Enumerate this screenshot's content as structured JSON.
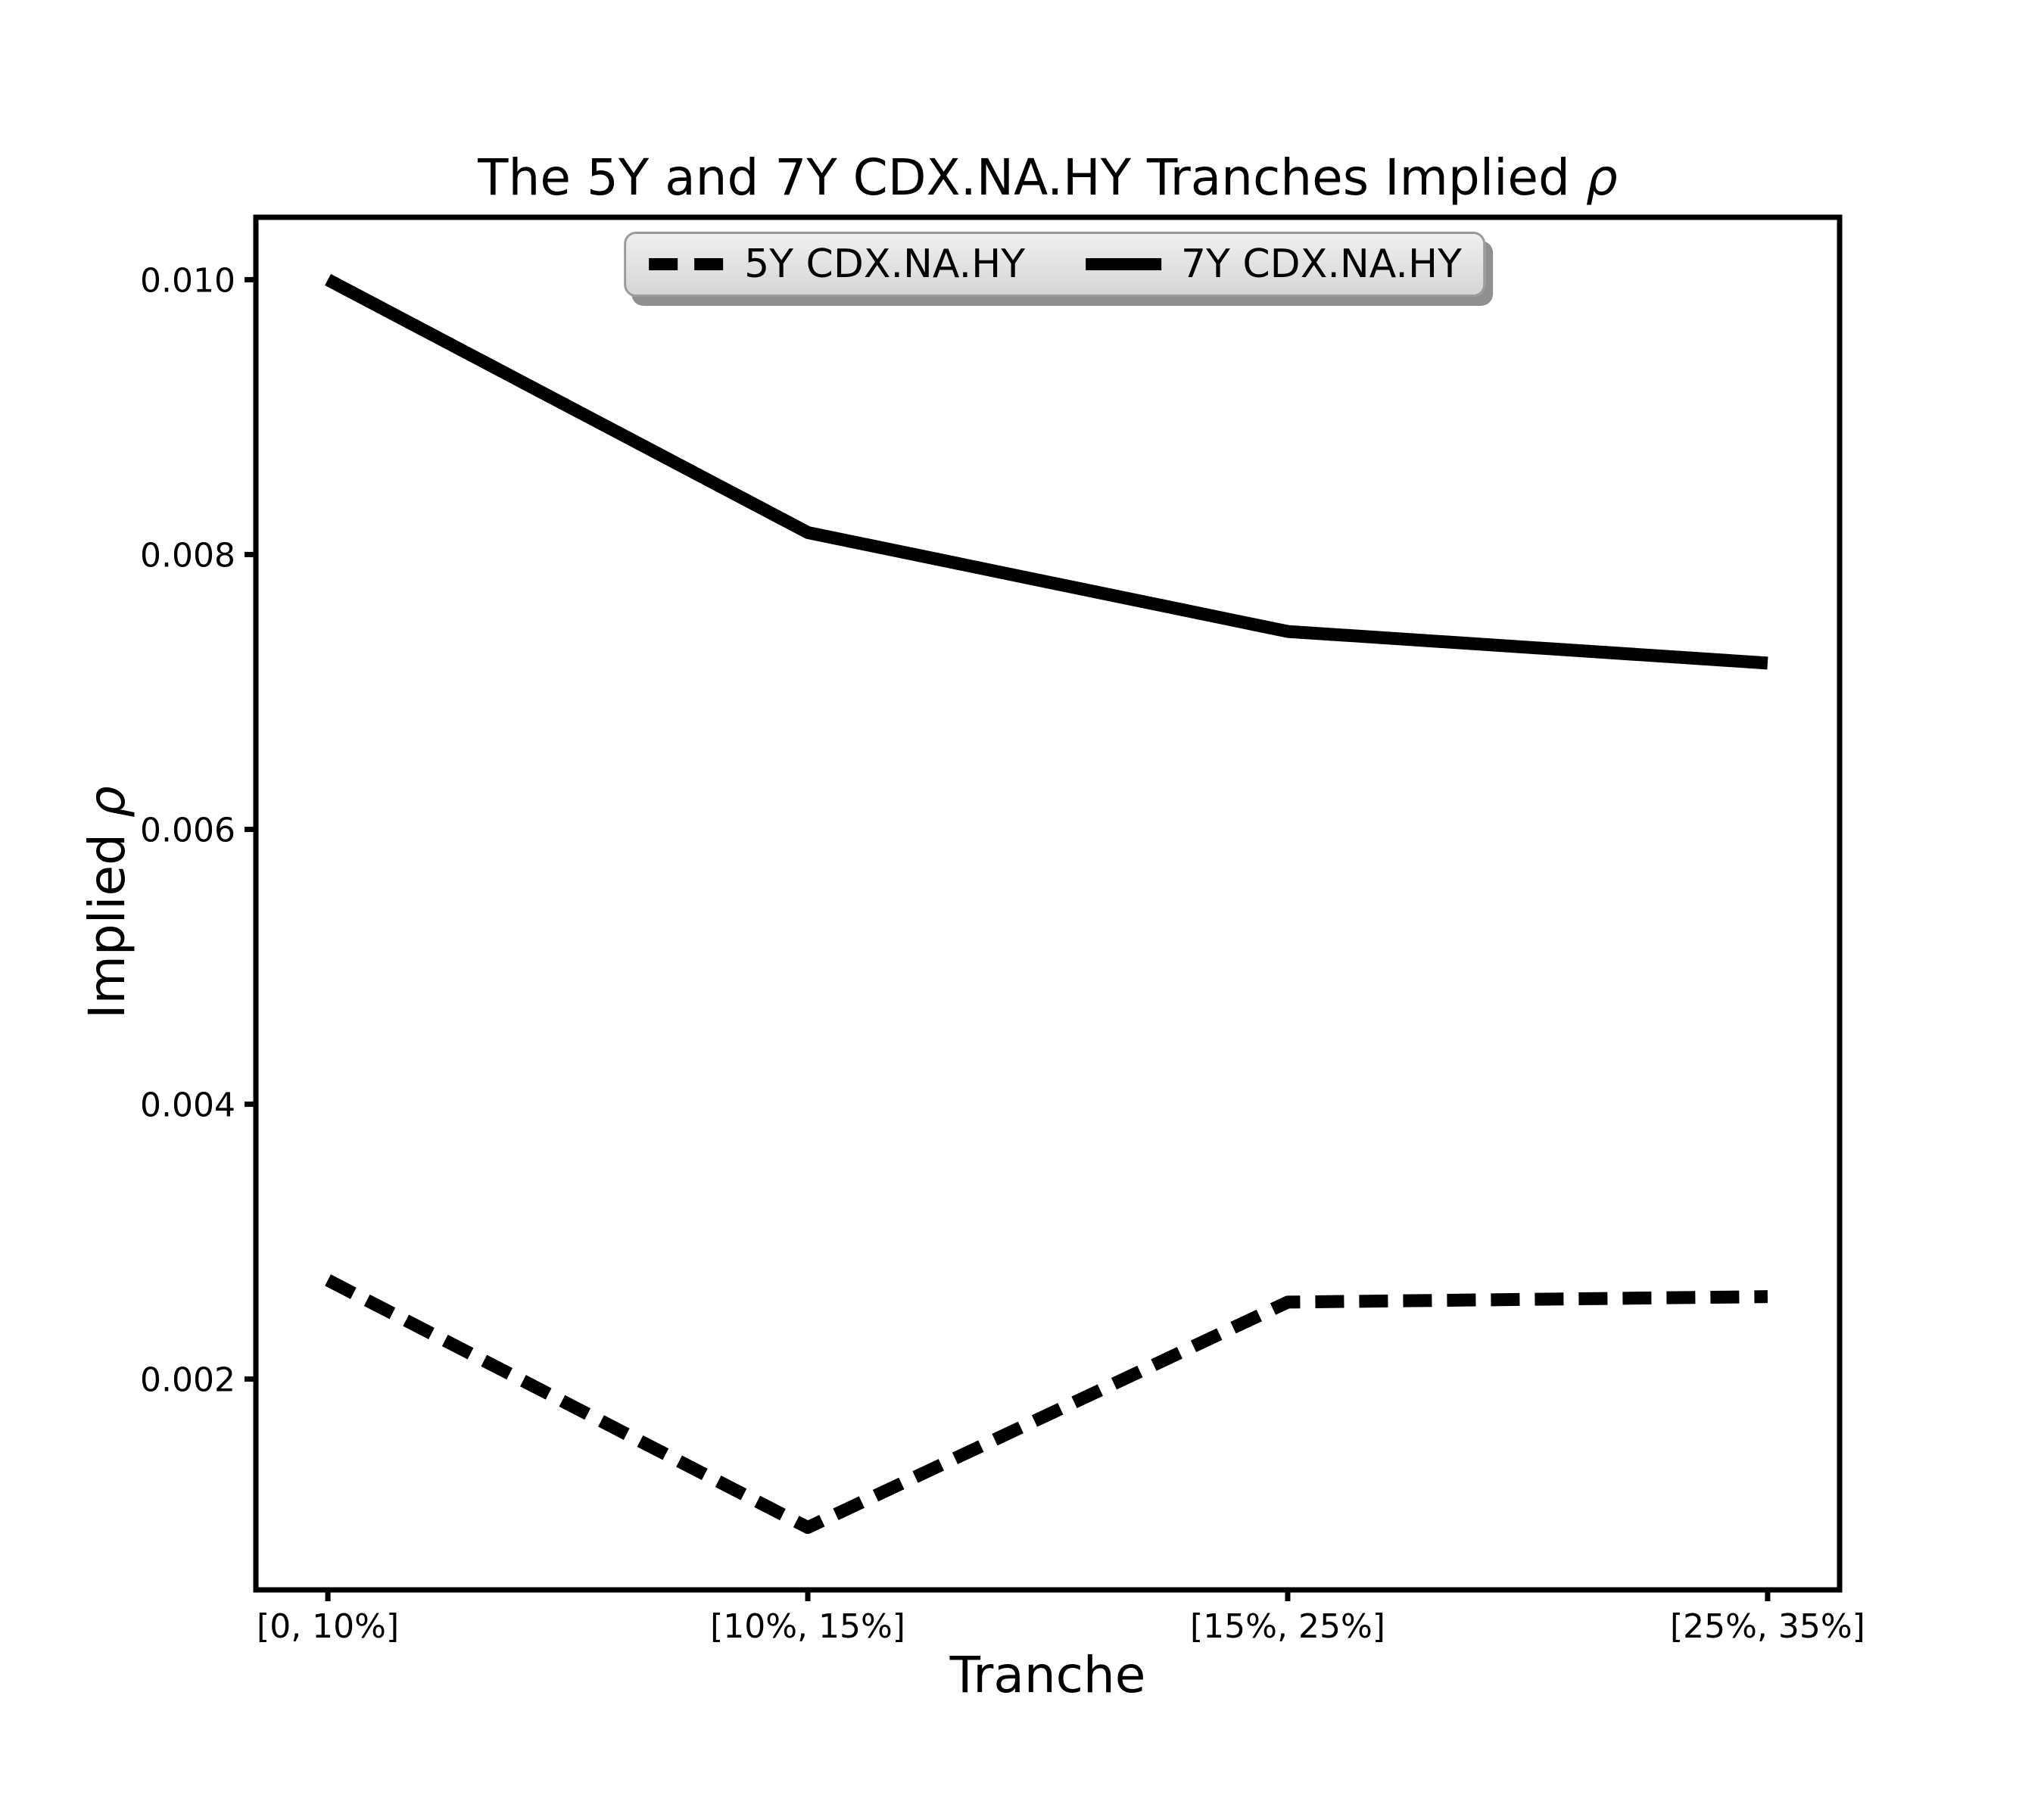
{
  "figure": {
    "background_color": "#ffffff",
    "line_color": "#000000",
    "legend_face_color": "#dcdcdc",
    "legend_edge_color": "#9b9b9b",
    "legend_shadow_color": "#8f8f8f"
  },
  "chart_data": {
    "type": "line",
    "title": "The 5Y and 7Y CDX.NA.HY Tranches Implied ρ",
    "xlabel": "Tranche",
    "ylabel": "Implied ρ",
    "categories": [
      "[0, 10%]",
      "[10%, 15%]",
      "[15%, 25%]",
      "[25%, 35%]"
    ],
    "series": [
      {
        "name": "5Y CDX.NA.HY",
        "line_style": "dashed",
        "color": "#000000",
        "values": [
          0.00272,
          0.00092,
          0.00256,
          0.0026
        ]
      },
      {
        "name": "7Y CDX.NA.HY",
        "line_style": "solid",
        "color": "#000000",
        "values": [
          0.01,
          0.00816,
          0.00744,
          0.00721
        ]
      }
    ],
    "y_ticks": [
      0.002,
      0.004,
      0.006,
      0.008,
      0.01
    ],
    "y_tick_labels": [
      "0.002",
      "0.004",
      "0.006",
      "0.008",
      "0.010"
    ],
    "ylim": [
      0.000466,
      0.010454
    ],
    "grid": false,
    "legend_position": "upper center"
  }
}
